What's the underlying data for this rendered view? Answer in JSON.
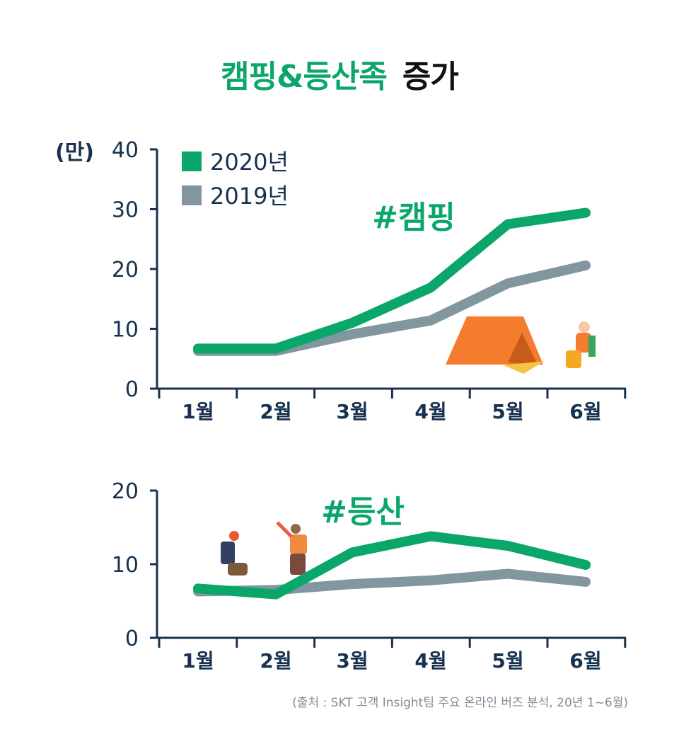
{
  "title": {
    "highlight": "캠핑&등산족",
    "rest": "증가"
  },
  "colors": {
    "s2020": "#0aa66a",
    "s2019": "#8296a0",
    "axis": "#17324f"
  },
  "chart_data": [
    {
      "type": "line",
      "annotation": "#캠핑",
      "ylabel": "(만)",
      "ylim": [
        0,
        40
      ],
      "yticks": [
        "0",
        "10",
        "20",
        "30",
        "40"
      ],
      "categories": [
        "1월",
        "2월",
        "3월",
        "4월",
        "5월",
        "6월"
      ],
      "legend": "top-left",
      "series": [
        {
          "name": "2020년",
          "values": [
            6.7,
            6.7,
            11,
            16.9,
            27.5,
            29.4
          ]
        },
        {
          "name": "2019년",
          "values": [
            6.3,
            6.3,
            9.1,
            11.4,
            17.6,
            20.6
          ]
        }
      ]
    },
    {
      "type": "line",
      "annotation": "#등산",
      "ylim": [
        0,
        20
      ],
      "yticks": [
        "0",
        "10",
        "20"
      ],
      "categories": [
        "1월",
        "2월",
        "3월",
        "4월",
        "5월",
        "6월"
      ],
      "series": [
        {
          "name": "2020년",
          "values": [
            6.7,
            5.9,
            11.6,
            13.8,
            12.5,
            9.9
          ]
        },
        {
          "name": "2019년",
          "values": [
            6.3,
            6.5,
            7.3,
            7.8,
            8.7,
            7.6
          ]
        }
      ]
    }
  ],
  "source": "(출처 : SKT 고객 Insight팀 주요 온라인 버즈 분석, 20년 1~6월)"
}
